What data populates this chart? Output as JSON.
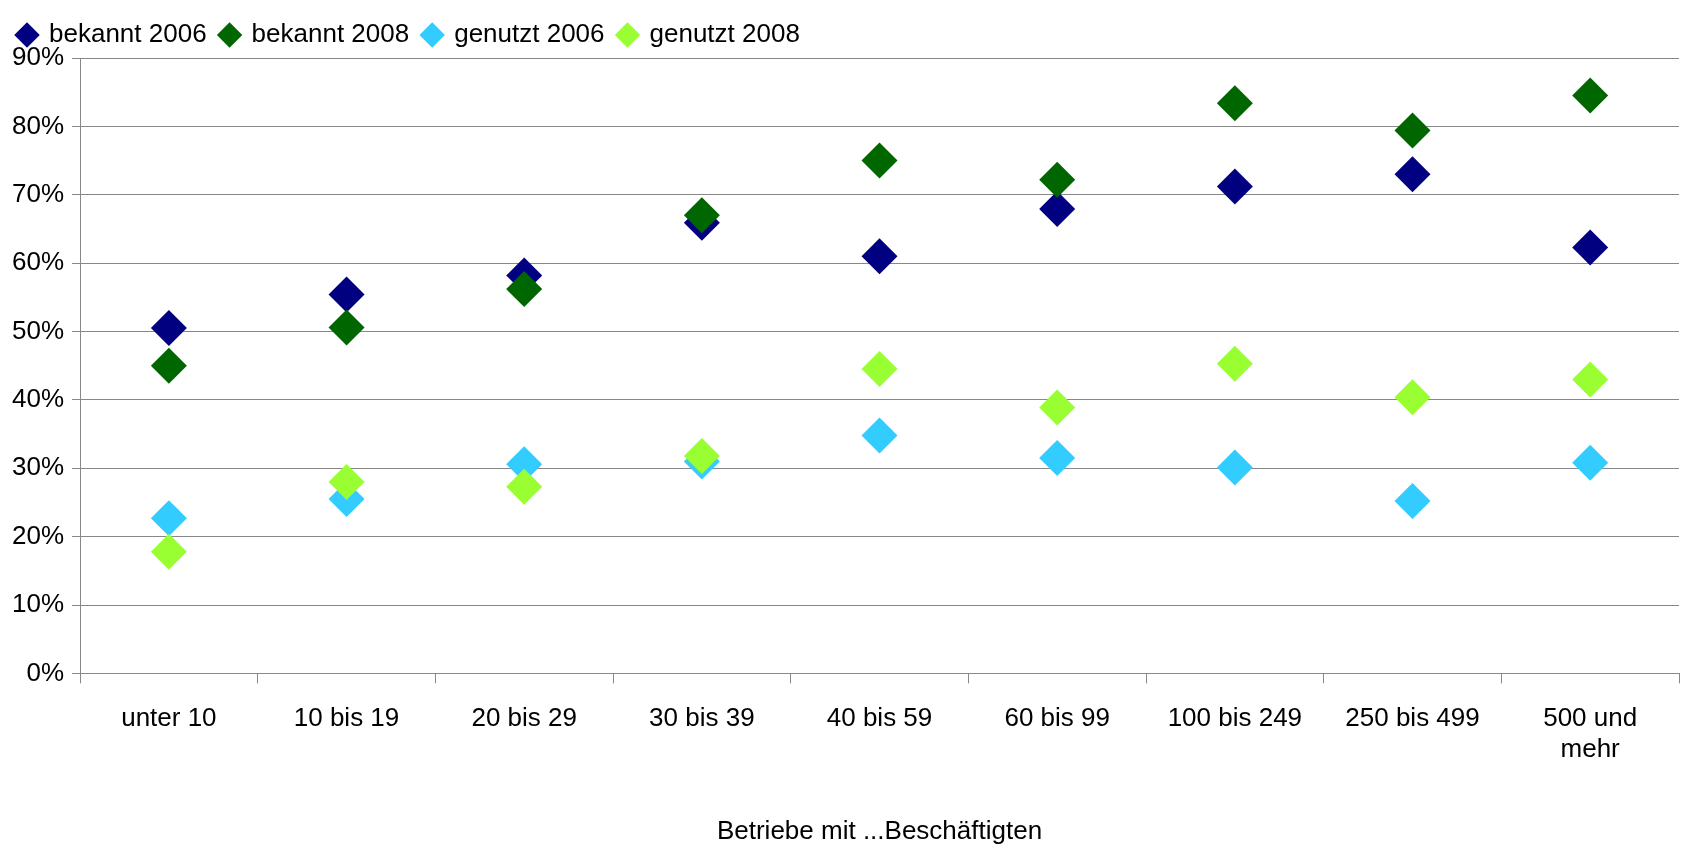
{
  "chart_data": {
    "type": "scatter",
    "xlabel": "Betriebe mit ...Beschäftigten",
    "categories": [
      "unter 10",
      "10 bis 19",
      "20 bis 29",
      "30 bis 39",
      "40 bis 59",
      "60 bis 99",
      "100 bis 249",
      "250 bis 499",
      "500 und mehr"
    ],
    "series": [
      {
        "name": "bekannt 2006",
        "color": "#000080",
        "values": [
          50.5,
          55.4,
          58.2,
          65.9,
          61,
          67.9,
          71.2,
          73,
          62.3
        ]
      },
      {
        "name": "bekannt 2008",
        "color": "#006600",
        "values": [
          45,
          50.6,
          56.2,
          67,
          75,
          72.2,
          83.4,
          79.4,
          84.5
        ]
      },
      {
        "name": "genutzt 2006",
        "color": "#33ccff",
        "values": [
          22.7,
          25.5,
          30.6,
          31,
          34.8,
          31.5,
          30.1,
          25.2,
          30.8
        ]
      },
      {
        "name": "genutzt 2008",
        "color": "#99ff33",
        "values": [
          17.8,
          28,
          27.3,
          31.8,
          44.5,
          38.9,
          45.3,
          40.4,
          43
        ]
      }
    ],
    "ylim": [
      0,
      90
    ],
    "yticks": [
      {
        "value": 0,
        "label": "0%"
      },
      {
        "value": 10,
        "label": "10%"
      },
      {
        "value": 20,
        "label": "20%"
      },
      {
        "value": 30,
        "label": "30%"
      },
      {
        "value": 40,
        "label": "40%"
      },
      {
        "value": 50,
        "label": "50%"
      },
      {
        "value": 60,
        "label": "60%"
      },
      {
        "value": 70,
        "label": "70%"
      },
      {
        "value": 80,
        "label": "80%"
      },
      {
        "value": 90,
        "label": "90%"
      }
    ],
    "grid": "y",
    "legend": "top left",
    "marker": "diamond"
  }
}
